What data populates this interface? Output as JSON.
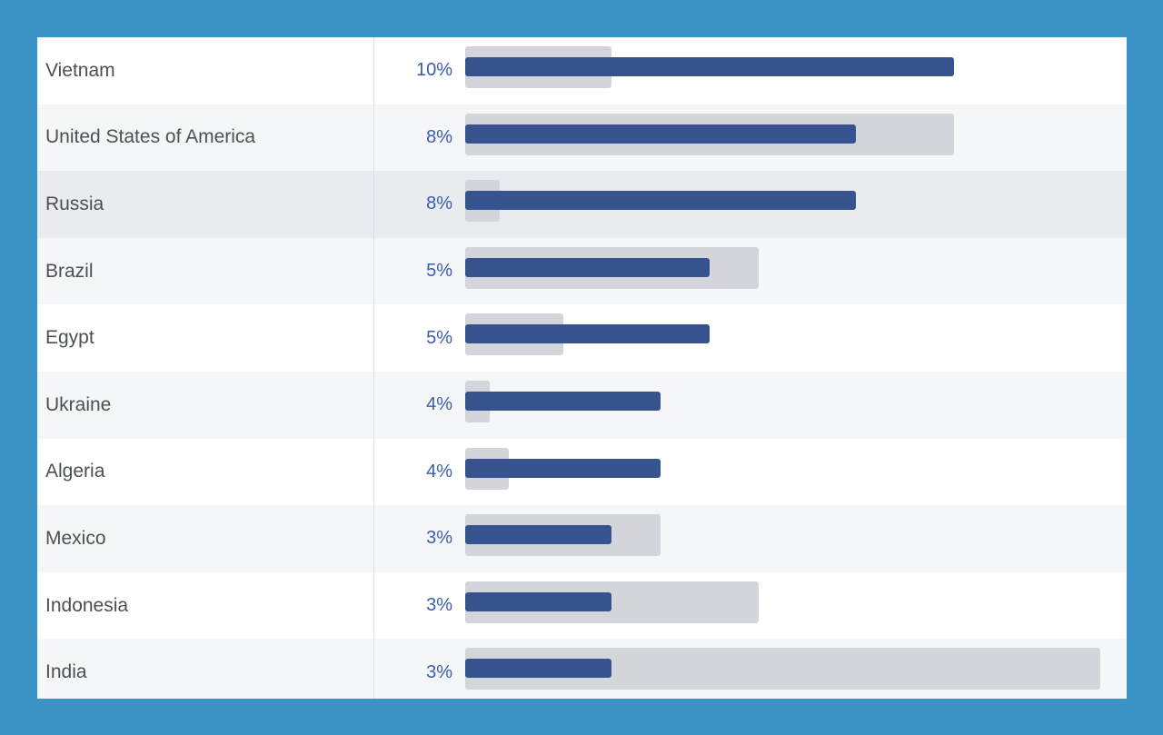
{
  "colors": {
    "frame": "#3b93c5",
    "primary_bar": "#37538f",
    "reference_bar": "#d4d5db",
    "percent_text": "#3a5db0",
    "label_text": "#4b4f56"
  },
  "chart_data": {
    "type": "bar",
    "orientation": "horizontal",
    "categories": [
      "Vietnam",
      "United States of America",
      "Russia",
      "Brazil",
      "Egypt",
      "Ukraine",
      "Algeria",
      "Mexico",
      "Indonesia",
      "India"
    ],
    "value_labels": [
      "10%",
      "8%",
      "8%",
      "5%",
      "5%",
      "4%",
      "4%",
      "3%",
      "3%",
      "3%"
    ],
    "series": [
      {
        "values": [
          10,
          8,
          8,
          5,
          5,
          4,
          4,
          3,
          3,
          3
        ]
      },
      {
        "values": [
          3,
          10,
          0.7,
          6,
          2,
          0.5,
          0.9,
          4,
          6,
          13
        ]
      }
    ],
    "xlim": [
      0,
      13.5
    ],
    "highlighted_row": 2,
    "grid": false
  }
}
